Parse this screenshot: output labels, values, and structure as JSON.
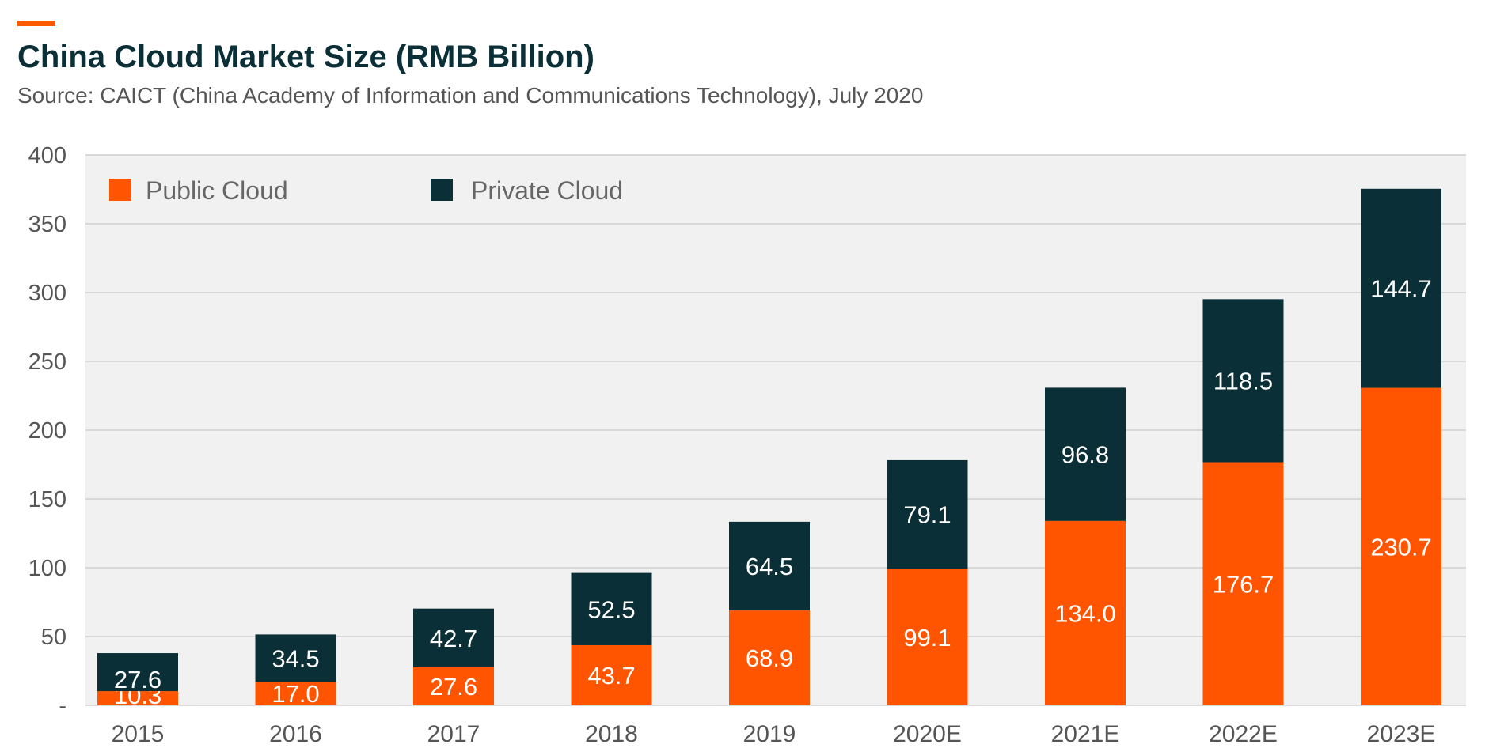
{
  "header": {
    "title": "China Cloud Market Size (RMB Billion)",
    "subtitle": "Source: CAICT (China Academy of Information and Communications Technology), July 2020"
  },
  "colors": {
    "accent": "#ff5a00",
    "public": "#ff5500",
    "private": "#0a2f36",
    "plot_bg": "#f1f1f1",
    "grid": "#cfcfcf",
    "tick_text": "#555555"
  },
  "chart_data": {
    "type": "bar",
    "stacked": true,
    "categories": [
      "2015",
      "2016",
      "2017",
      "2018",
      "2019",
      "2020E",
      "2021E",
      "2022E",
      "2023E"
    ],
    "series": [
      {
        "name": "Public Cloud",
        "values": [
          10.3,
          17.0,
          27.6,
          43.7,
          68.9,
          99.1,
          134.0,
          176.7,
          230.7
        ]
      },
      {
        "name": "Private Cloud",
        "values": [
          27.6,
          34.5,
          42.7,
          52.5,
          64.5,
          79.1,
          96.8,
          118.5,
          144.7
        ]
      }
    ],
    "value_labels": [
      [
        "10.3",
        "17.0",
        "27.6",
        "43.7",
        "68.9",
        "99.1",
        "134.0",
        "176.7",
        "230.7"
      ],
      [
        "27.6",
        "34.5",
        "42.7",
        "52.5",
        "64.5",
        "79.1",
        "96.8",
        "118.5",
        "144.7"
      ]
    ],
    "yticks": [
      0,
      50,
      100,
      150,
      200,
      250,
      300,
      350,
      400
    ],
    "ytick_labels": [
      "-",
      "50",
      "100",
      "150",
      "200",
      "250",
      "300",
      "350",
      "400"
    ],
    "ylim": [
      0,
      400
    ],
    "grid": true,
    "legend_position": "top-left"
  }
}
